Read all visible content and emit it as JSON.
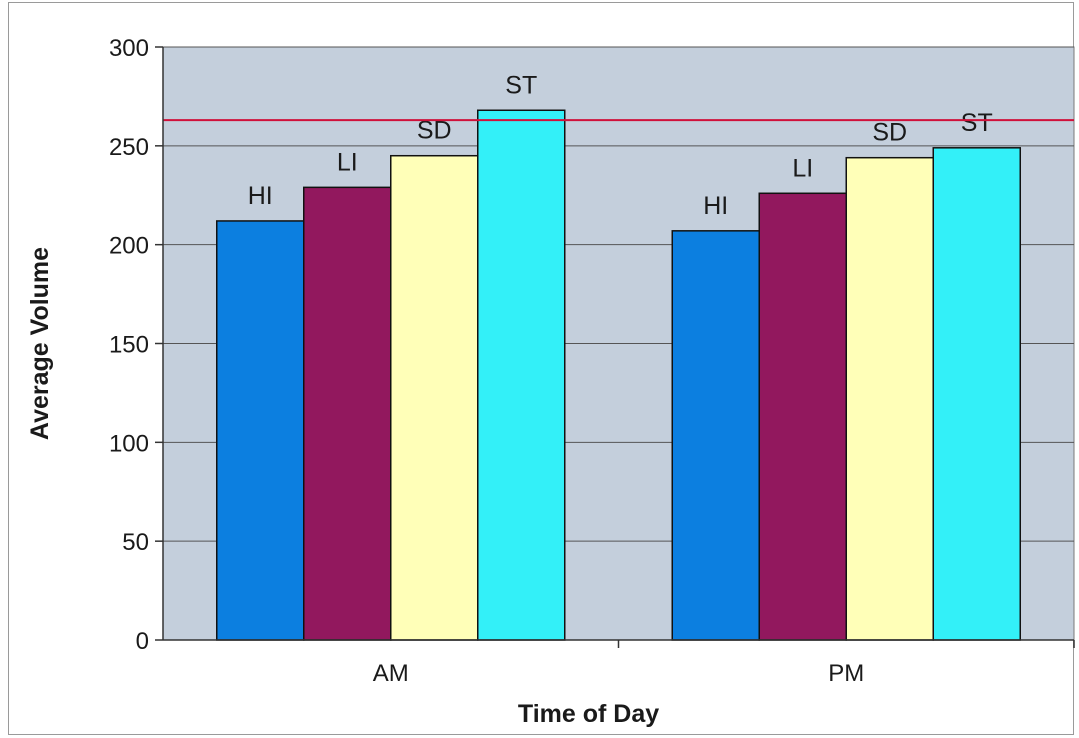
{
  "chart_data": {
    "type": "bar",
    "xlabel": "Time of Day",
    "ylabel": "Average Volume",
    "ylim": [
      0,
      300
    ],
    "yticks": [
      0,
      50,
      100,
      150,
      200,
      250,
      300
    ],
    "categories": [
      "AM",
      "PM"
    ],
    "grid": true,
    "legend": "none",
    "reference_line": {
      "y": 263,
      "color": "#d0103a"
    },
    "series": [
      {
        "name": "HI",
        "values": [
          212,
          207
        ],
        "color": "#0c7fe0"
      },
      {
        "name": "LI",
        "values": [
          229,
          226
        ],
        "color": "#92185e"
      },
      {
        "name": "SD",
        "values": [
          245,
          244
        ],
        "color": "#ffffb8"
      },
      {
        "name": "ST",
        "values": [
          268,
          249
        ],
        "color": "#33f0f8"
      }
    ],
    "plot_background": "#c4cfdc"
  }
}
